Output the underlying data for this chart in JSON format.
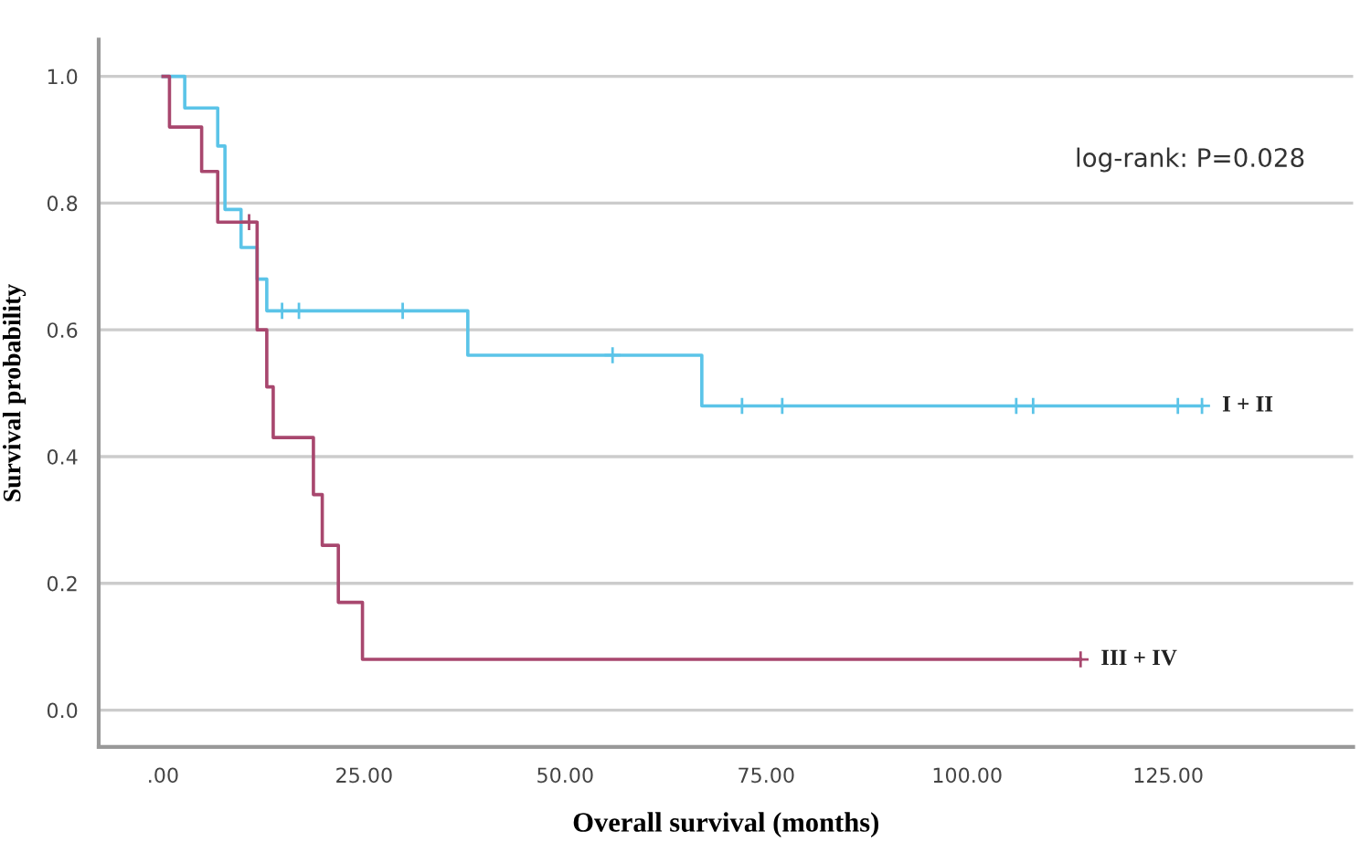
{
  "chart_data": {
    "type": "step",
    "xlabel": "Overall survival (months)",
    "ylabel": "Survival probability",
    "annotations": [
      "log-rank: P=0.028"
    ],
    "xlim": [
      -8,
      148
    ],
    "ylim": [
      -0.058,
      1.058
    ],
    "xticks": [
      {
        "value": 0,
        "label": ".00"
      },
      {
        "value": 25,
        "label": "25.00"
      },
      {
        "value": 50,
        "label": "50.00"
      },
      {
        "value": 75,
        "label": "75.00"
      },
      {
        "value": 100,
        "label": "100.00"
      },
      {
        "value": 125,
        "label": "125.00"
      }
    ],
    "yticks": [
      {
        "value": 0,
        "label": "0.0"
      },
      {
        "value": 0.2,
        "label": "0.2"
      },
      {
        "value": 0.4,
        "label": "0.4"
      },
      {
        "value": 0.6,
        "label": "0.6"
      },
      {
        "value": 0.8,
        "label": "0.8"
      },
      {
        "value": 1.0,
        "label": "1.0"
      }
    ],
    "grid": "y",
    "legend": false,
    "line_style": "solid",
    "series": [
      {
        "name": "I + II",
        "color": "#5bc4e8",
        "x": [
          0,
          2.7,
          6.8,
          7.7,
          9.7,
          11.7,
          12.9,
          37.9,
          67.0,
          129.2
        ],
        "values": [
          1.0,
          0.95,
          0.89,
          0.79,
          0.73,
          0.68,
          0.63,
          0.56,
          0.48,
          0.48
        ]
      },
      {
        "name": "III + IV",
        "color": "#a8476e",
        "x": [
          0,
          0.8,
          4.8,
          6.8,
          11.7,
          12.9,
          13.7,
          18.7,
          19.8,
          21.8,
          24.8,
          114.1
        ],
        "values": [
          1.0,
          0.92,
          0.85,
          0.77,
          0.6,
          0.51,
          0.43,
          0.34,
          0.26,
          0.17,
          0.08,
          0.08
        ]
      },
      {
        "type": "scatter",
        "marker": "cross",
        "color": "#5bc4e8",
        "x": [
          14.8,
          16.9,
          29.8,
          55.9,
          72.0,
          77.0,
          106.1,
          108.2,
          126.2,
          129.2
        ],
        "values": [
          0.63,
          0.63,
          0.63,
          0.56,
          0.48,
          0.48,
          0.48,
          0.48,
          0.48,
          0.48
        ]
      },
      {
        "type": "scatter",
        "marker": "cross",
        "color": "#a8476e",
        "x": [
          10.7,
          114.1
        ],
        "values": [
          0.77,
          0.08
        ]
      }
    ]
  }
}
